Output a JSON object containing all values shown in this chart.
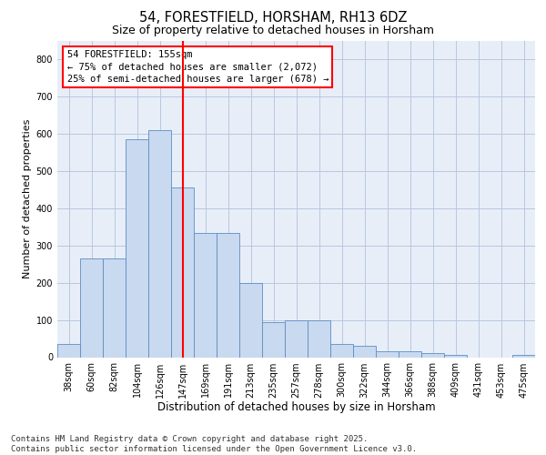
{
  "title1": "54, FORESTFIELD, HORSHAM, RH13 6DZ",
  "title2": "Size of property relative to detached houses in Horsham",
  "xlabel": "Distribution of detached houses by size in Horsham",
  "ylabel": "Number of detached properties",
  "categories": [
    "38sqm",
    "60sqm",
    "82sqm",
    "104sqm",
    "126sqm",
    "147sqm",
    "169sqm",
    "191sqm",
    "213sqm",
    "235sqm",
    "257sqm",
    "278sqm",
    "300sqm",
    "322sqm",
    "344sqm",
    "366sqm",
    "388sqm",
    "409sqm",
    "431sqm",
    "453sqm",
    "475sqm"
  ],
  "values": [
    35,
    265,
    265,
    585,
    610,
    455,
    335,
    335,
    200,
    95,
    100,
    100,
    35,
    30,
    15,
    15,
    10,
    5,
    0,
    0,
    5
  ],
  "bar_color": "#c9d9ef",
  "bar_edge_color": "#5b8ec4",
  "grid_color": "#b8c8e0",
  "background_color": "#e8eef8",
  "annotation_line1": "54 FORESTFIELD: 155sqm",
  "annotation_line2": "← 75% of detached houses are smaller (2,072)",
  "annotation_line3": "25% of semi-detached houses are larger (678) →",
  "vline_x": 5.0,
  "ylim": [
    0,
    850
  ],
  "yticks": [
    0,
    100,
    200,
    300,
    400,
    500,
    600,
    700,
    800
  ],
  "footnote": "Contains HM Land Registry data © Crown copyright and database right 2025.\nContains public sector information licensed under the Open Government Licence v3.0.",
  "title1_fontsize": 10.5,
  "title2_fontsize": 9,
  "xlabel_fontsize": 8.5,
  "ylabel_fontsize": 8,
  "tick_fontsize": 7,
  "annotation_fontsize": 7.5,
  "footnote_fontsize": 6.5
}
